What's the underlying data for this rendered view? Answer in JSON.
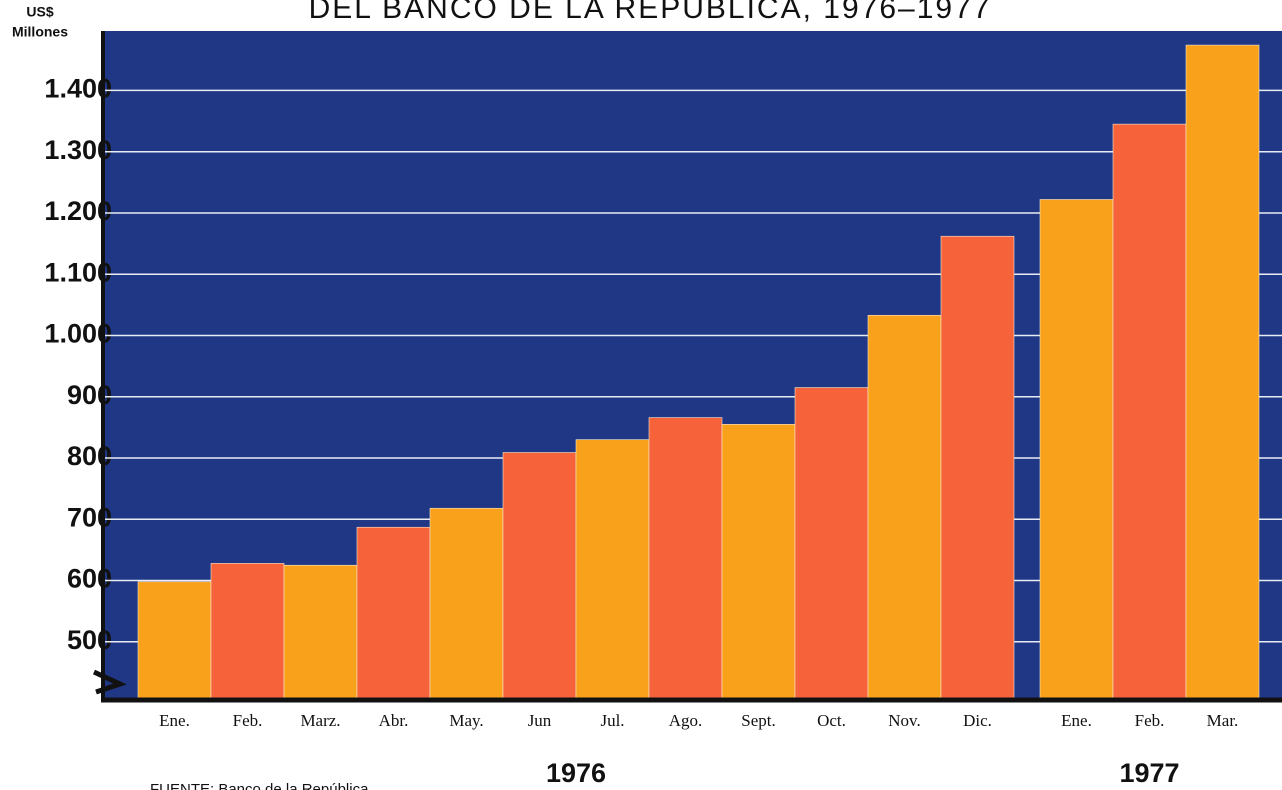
{
  "chart_data": {
    "type": "bar",
    "title": "DEL BANCO DE LA REPUBLICA, 1976–1977",
    "y_label": [
      "US$",
      "Millones"
    ],
    "source": "FUENTE: Banco de la República",
    "groups": [
      {
        "name": "1976",
        "categories": [
          "Ene.",
          "Feb.",
          "Marz.",
          "Abr.",
          "May.",
          "Jun",
          "Jul.",
          "Ago.",
          "Sept.",
          "Oct.",
          "Nov.",
          "Dic."
        ],
        "values": [
          598,
          628,
          625,
          687,
          718,
          809,
          830,
          866,
          855,
          915,
          1033,
          1162
        ]
      },
      {
        "name": "1977",
        "categories": [
          "Ene.",
          "Feb.",
          "Mar."
        ],
        "values": [
          1222,
          1345,
          1474
        ]
      }
    ],
    "colors": [
      "#f9a11b",
      "#f6623a"
    ],
    "background": "#1f3784",
    "ylim": [
      405,
      1497
    ],
    "yticks": [
      500,
      600,
      700,
      800,
      900,
      {
        "value": 1000,
        "label": "1.000"
      },
      {
        "value": 1100,
        "label": "1.100"
      },
      {
        "value": 1200,
        "label": "1.200"
      },
      {
        "value": 1300,
        "label": "1.300"
      },
      {
        "value": 1400,
        "label": "1.400"
      }
    ],
    "grid": true
  }
}
